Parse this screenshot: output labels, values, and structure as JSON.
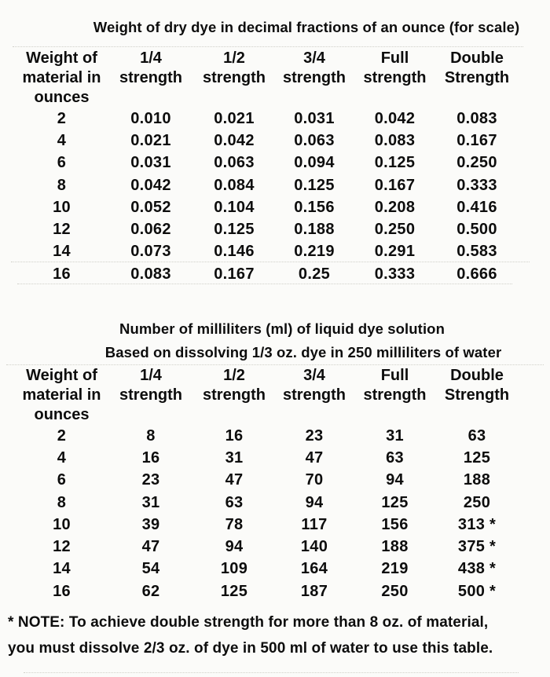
{
  "colors": {
    "bg": "#fbfbf9",
    "ink": "#0d0d0d",
    "artifact": "#c9c9c1"
  },
  "table_dry": {
    "title": "Weight of dry dye in decimal fractions of an ounce (for scale)",
    "columns": [
      "Weight of material in ounces",
      "1/4 strength",
      "1/2 strength",
      "3/4 strength",
      "Full strength",
      "Double Strength"
    ],
    "rows": [
      [
        "2",
        "0.010",
        "0.021",
        "0.031",
        "0.042",
        "0.083"
      ],
      [
        "4",
        "0.021",
        "0.042",
        "0.063",
        "0.083",
        "0.167"
      ],
      [
        "6",
        "0.031",
        "0.063",
        "0.094",
        "0.125",
        "0.250"
      ],
      [
        "8",
        "0.042",
        "0.084",
        "0.125",
        "0.167",
        "0.333"
      ],
      [
        "10",
        "0.052",
        "0.104",
        "0.156",
        "0.208",
        "0.416"
      ],
      [
        "12",
        "0.062",
        "0.125",
        "0.188",
        "0.250",
        "0.500"
      ],
      [
        "14",
        "0.073",
        "0.146",
        "0.219",
        "0.291",
        "0.583"
      ],
      [
        "16",
        "0.083",
        "0.167",
        "0.25",
        "0.333",
        "0.666"
      ]
    ]
  },
  "table_liquid": {
    "title": "Number of milliliters (ml) of liquid dye solution",
    "subtitle": "Based on dissolving 1/3 oz. dye in 250 milliliters of water",
    "columns": [
      "Weight of material in ounces",
      "1/4 strength",
      "1/2 strength",
      "3/4 strength",
      "Full strength",
      "Double Strength"
    ],
    "rows": [
      [
        "2",
        "8",
        "16",
        "23",
        "31",
        "63"
      ],
      [
        "4",
        "16",
        "31",
        "47",
        "63",
        "125"
      ],
      [
        "6",
        "23",
        "47",
        "70",
        "94",
        "188"
      ],
      [
        "8",
        "31",
        "63",
        "94",
        "125",
        "250"
      ],
      [
        "10",
        "39",
        "78",
        "117",
        "156",
        "313 *"
      ],
      [
        "12",
        "47",
        "94",
        "140",
        "188",
        "375 *"
      ],
      [
        "14",
        "54",
        "109",
        "164",
        "219",
        "438 *"
      ],
      [
        "16",
        "62",
        "125",
        "187",
        "250",
        "500 *"
      ]
    ]
  },
  "note": {
    "line1": "* NOTE: To achieve double strength for more than 8 oz. of material,",
    "line2": "you must dissolve 2/3 oz. of dye in 500 ml of water to use this table."
  }
}
